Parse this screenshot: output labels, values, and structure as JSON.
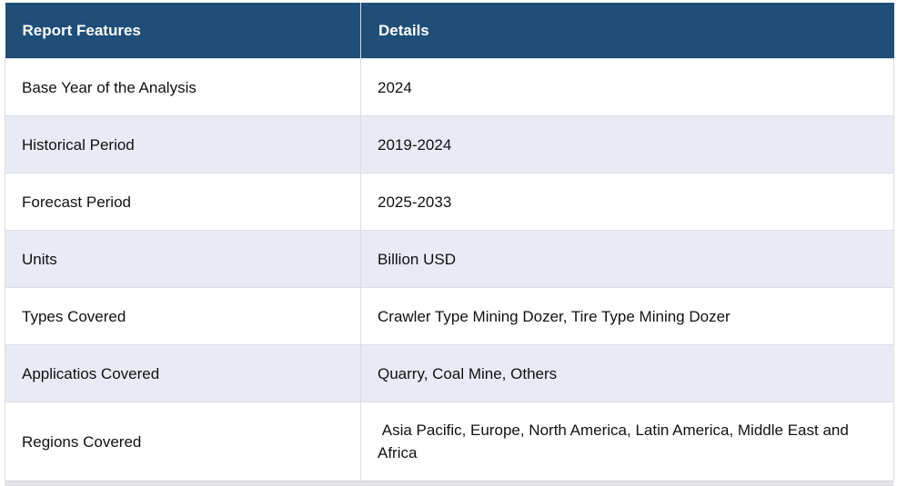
{
  "table": {
    "headers": [
      "Report Features",
      "Details"
    ],
    "rows": [
      {
        "feature": "Base Year of the Analysis",
        "detail": "2024"
      },
      {
        "feature": "Historical Period",
        "detail": "2019-2024"
      },
      {
        "feature": "Forecast Period",
        "detail": "2025-2033"
      },
      {
        "feature": "Units",
        "detail": "Billion USD"
      },
      {
        "feature": "Types Covered",
        "detail": "Crawler Type Mining Dozer, Tire Type Mining Dozer"
      },
      {
        "feature": "Applicatios Covered",
        "detail": "Quarry, Coal Mine, Others"
      },
      {
        "feature": "Regions Covered",
        "detail": " Asia Pacific, Europe, North America, Latin America, Middle East and Africa"
      }
    ]
  },
  "colors": {
    "header_bg": "#1f4e79",
    "header_text": "#ffffff",
    "alt_row_bg": "#e8eaf5",
    "row_bg": "#ffffff"
  }
}
